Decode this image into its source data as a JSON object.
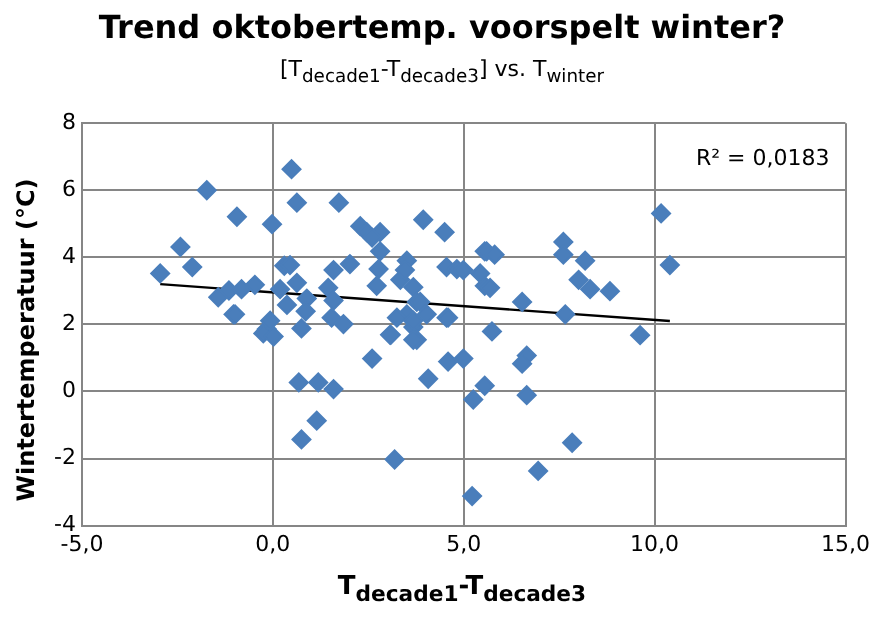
{
  "chart_data": {
    "type": "scatter",
    "title": "Trend oktobertemp. voorspelt winter?",
    "subtitle": "[T$_{decade1}$-T$_{decade3}$] vs. T$_{winter}$",
    "xlabel": "T$_{decade1}$-T$_{decade3}$",
    "ylabel": "Wintertemperatuur (°C)",
    "annotations": [
      "R² = 0,0183"
    ],
    "xlim": [
      -5,
      15
    ],
    "xticks": [
      {
        "value": -5,
        "label": "-5,0"
      },
      {
        "value": 0,
        "label": "0,0"
      },
      {
        "value": 5,
        "label": "5,0"
      },
      {
        "value": 10,
        "label": "10,0"
      },
      {
        "value": 15,
        "label": "15,0"
      }
    ],
    "ylim": [
      -4,
      8
    ],
    "yticks": [
      -4,
      -2,
      0,
      2,
      4,
      6,
      8
    ],
    "grid": true,
    "legend": false,
    "series": [
      {
        "color": "#4a7ebb",
        "marker": "diamond",
        "x": [
          -2.95,
          -2.42,
          -2.11,
          -1.73,
          -0.94,
          -1.43,
          -1.15,
          -0.82,
          -1.03,
          -0.47,
          -0.02,
          0.49,
          0.63,
          1.73,
          0.3,
          0.45,
          0.19,
          0.63,
          0.37,
          0.89,
          0.86,
          0.75,
          1.59,
          2.02,
          1.45,
          1.59,
          1.54,
          1.85,
          2.29,
          2.46,
          2.81,
          2.6,
          2.81,
          2.77,
          2.72,
          3.34,
          3.51,
          3.46,
          3.68,
          3.77,
          3.94,
          4.5,
          4.55,
          4.82,
          4.03,
          3.51,
          4.55,
          3.07,
          -0.16,
          -0.25,
          5.55,
          5.55,
          4.99,
          5.43,
          5.6,
          5.81,
          5.69,
          3.86,
          4.59,
          6.53,
          7.61,
          7.61,
          8.18,
          8.01,
          8.31,
          8.83,
          7.66,
          10.17,
          10.4,
          5.74,
          9.62,
          3.68,
          3.77,
          4.59,
          4.99,
          4.07,
          6.65,
          6.53,
          5.55,
          5.25,
          6.65,
          7.84,
          6.95,
          5.22,
          -0.99,
          0.02,
          -0.07,
          2.6,
          3.09,
          3.25,
          3.68,
          3.68,
          0.68,
          1.19,
          1.59,
          1.15,
          0.75,
          3.19
        ],
        "values": [
          3.52,
          4.31,
          3.71,
          6.0,
          5.21,
          2.81,
          3.01,
          3.05,
          2.3,
          3.18,
          4.99,
          6.63,
          5.63,
          5.63,
          3.75,
          3.77,
          3.05,
          3.24,
          2.58,
          2.77,
          2.39,
          1.88,
          3.62,
          3.8,
          3.09,
          2.71,
          2.2,
          2.01,
          4.93,
          4.75,
          4.75,
          4.59,
          4.18,
          3.65,
          3.15,
          3.33,
          3.9,
          3.62,
          3.11,
          2.67,
          5.12,
          4.75,
          3.71,
          3.65,
          2.3,
          2.3,
          2.2,
          1.69,
          1.86,
          1.73,
          4.18,
          3.15,
          3.62,
          3.52,
          4.18,
          4.08,
          3.09,
          2.67,
          2.2,
          2.67,
          4.46,
          4.08,
          3.9,
          3.33,
          3.05,
          2.99,
          2.3,
          5.31,
          3.77,
          1.79,
          1.68,
          1.92,
          1.54,
          0.89,
          0.98,
          0.38,
          1.07,
          0.83,
          0.17,
          -0.24,
          -0.11,
          -1.53,
          -2.37,
          -3.12,
          2.3,
          1.64,
          2.11,
          0.98,
          1.69,
          2.2,
          2.11,
          1.54,
          0.27,
          0.27,
          0.07,
          -0.87,
          -1.43,
          -2.03
        ]
      },
      {
        "type": "line",
        "marker": "none",
        "color": "#000000",
        "x": [
          -2.95,
          10.4
        ],
        "values": [
          3.2,
          2.1
        ]
      }
    ]
  }
}
